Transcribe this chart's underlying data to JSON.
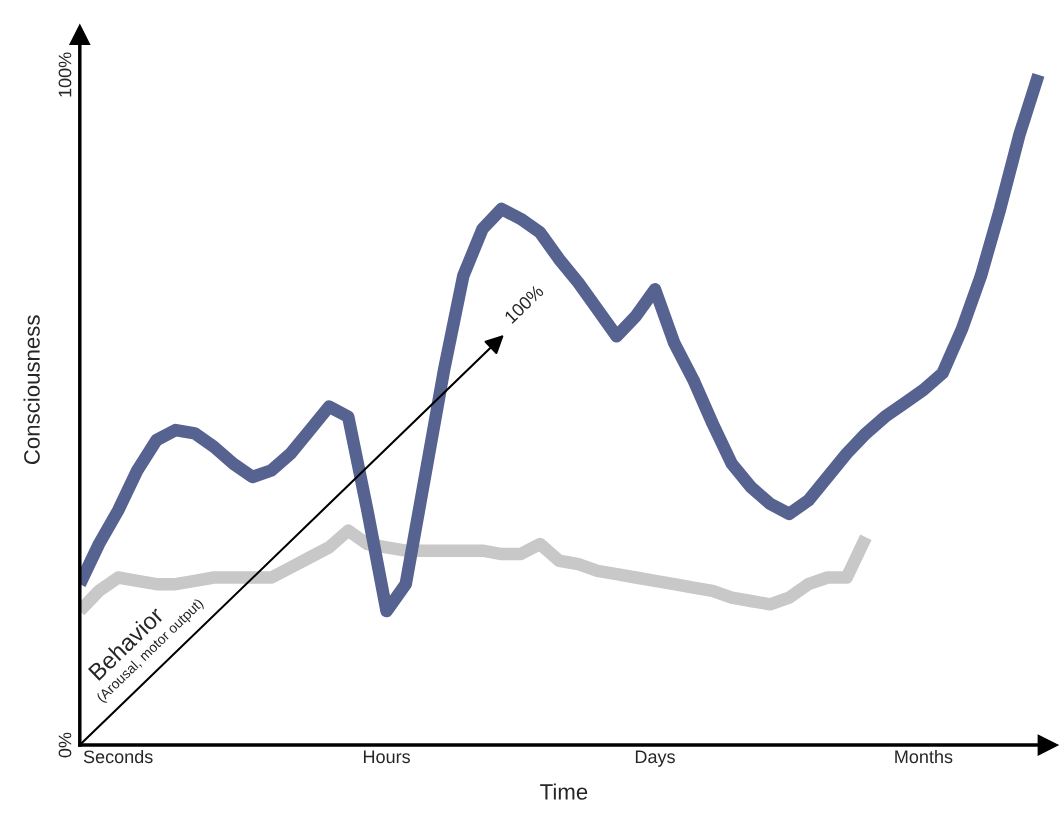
{
  "chart_data": {
    "type": "line",
    "xlabel": "Time",
    "ylabel": "Consciousness",
    "ylim": [
      0,
      106
    ],
    "yticks": [
      {
        "value": 0,
        "label": "0%"
      },
      {
        "value": 100,
        "label": "100%"
      }
    ],
    "grid": false,
    "categories": [
      null,
      null,
      "Seconds",
      null,
      null,
      null,
      null,
      null,
      null,
      null,
      null,
      null,
      null,
      null,
      null,
      null,
      "Hours",
      null,
      null,
      null,
      null,
      null,
      null,
      null,
      null,
      null,
      null,
      null,
      null,
      null,
      "Days",
      null,
      null,
      null,
      null,
      null,
      null,
      null,
      null,
      null,
      null,
      null,
      null,
      null,
      "Months",
      null,
      null,
      null,
      null,
      null,
      null
    ],
    "series": [
      {
        "color": "#c8c8c8",
        "values": [
          20,
          23,
          25,
          24.5,
          24,
          24,
          24.5,
          25,
          25,
          25,
          25,
          26.5,
          28,
          29.5,
          32,
          30,
          29.5,
          29,
          29,
          29,
          29,
          29,
          28.5,
          28.5,
          30,
          27.5,
          27,
          26,
          25.5,
          25,
          24.5,
          24,
          23.5,
          23,
          22,
          21.5,
          21,
          22,
          24,
          25,
          25,
          31,
          null,
          null,
          null,
          null,
          null,
          null,
          null,
          null,
          null
        ]
      },
      {
        "color": "#56628f",
        "values": [
          24,
          30,
          35,
          41,
          45.5,
          47,
          46.5,
          44.5,
          42,
          40,
          41,
          43.5,
          47,
          50.5,
          49,
          35,
          20,
          24,
          40,
          56,
          70,
          77,
          80,
          78.5,
          76.5,
          72.5,
          69,
          65,
          61,
          64,
          68,
          60,
          54.5,
          48,
          42,
          38.5,
          36,
          34.5,
          36.5,
          40,
          43.5,
          46.5,
          49,
          51,
          53,
          55.5,
          62,
          70,
          80,
          91,
          100
        ]
      }
    ],
    "annotations": [
      "Behavior",
      "(Arousal, motor output)",
      "100%"
    ]
  }
}
